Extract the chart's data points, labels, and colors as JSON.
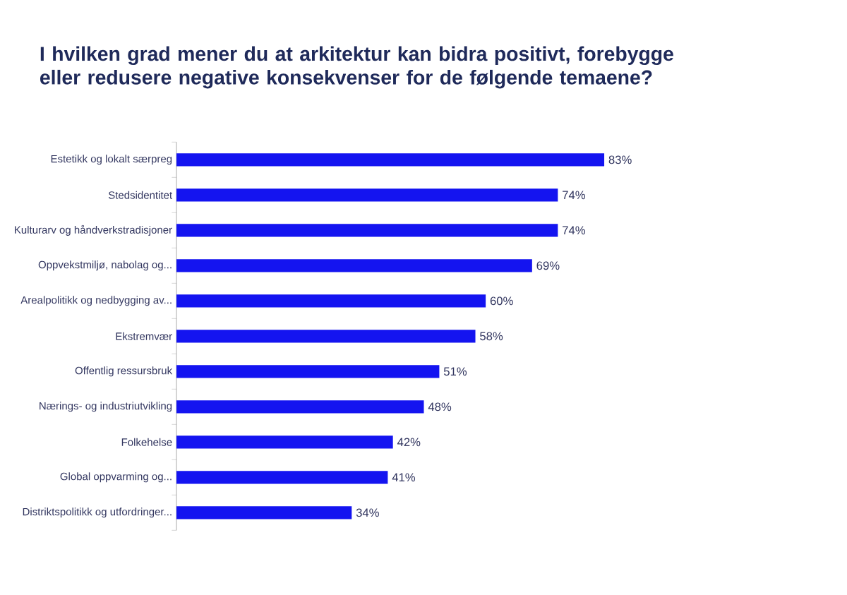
{
  "chart_data": {
    "type": "bar",
    "orientation": "horizontal",
    "title": "I hvilken grad mener du at arkitektur kan bidra positivt, forebygge eller redusere negative konsekvenser for de følgende temaene?",
    "categories": [
      "Estetikk og lokalt særpreg",
      "Stedsidentitet",
      "Kulturarv og håndverkstradisjoner",
      "Oppvekstmiljø, nabolag og...",
      "Arealpolitikk og nedbygging av...",
      "Ekstremvær",
      "Offentlig ressursbruk",
      "Nærings- og industriutvikling",
      "Folkehelse",
      "Global oppvarming og...",
      "Distriktspolitikk og utfordringer..."
    ],
    "values": [
      83,
      74,
      74,
      69,
      60,
      58,
      51,
      48,
      42,
      41,
      34
    ],
    "value_labels": [
      "83%",
      "74%",
      "74%",
      "69%",
      "60%",
      "58%",
      "51%",
      "48%",
      "42%",
      "41%",
      "34%"
    ],
    "color": "#1414f0"
  }
}
